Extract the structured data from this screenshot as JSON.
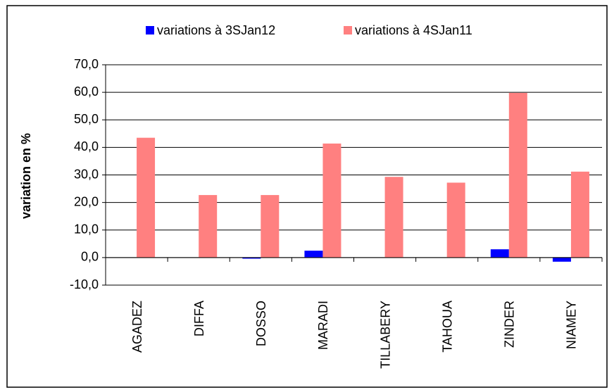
{
  "chart_data": {
    "type": "bar",
    "y_label": "variation en %",
    "categories": [
      "AGADEZ",
      "DIFFA",
      "DOSSO",
      "MARADI",
      "TILLABERY",
      "TAHOUA",
      "ZINDER",
      "NIAMEY"
    ],
    "series": [
      {
        "name": "variations à 3SJan12",
        "color": "#0000ff",
        "values": [
          0,
          0,
          -0.4,
          2.5,
          0,
          0,
          3.0,
          -1.5
        ]
      },
      {
        "name": "variations à 4SJan11",
        "color": "#ff8080",
        "values": [
          43.5,
          22.7,
          22.7,
          41.4,
          29.3,
          27.2,
          59.8,
          31.2
        ]
      }
    ],
    "ylim": [
      -10,
      70
    ],
    "yticks": [
      {
        "value": -10,
        "label": "-10,0"
      },
      {
        "value": 0,
        "label": "0,0"
      },
      {
        "value": 10,
        "label": "10,0"
      },
      {
        "value": 20,
        "label": "20,0"
      },
      {
        "value": 30,
        "label": "30,0"
      },
      {
        "value": 40,
        "label": "40,0"
      },
      {
        "value": 50,
        "label": "50,0"
      },
      {
        "value": 60,
        "label": "60,0"
      },
      {
        "value": 70,
        "label": "70,0"
      }
    ],
    "grid": true,
    "legend": "top"
  }
}
